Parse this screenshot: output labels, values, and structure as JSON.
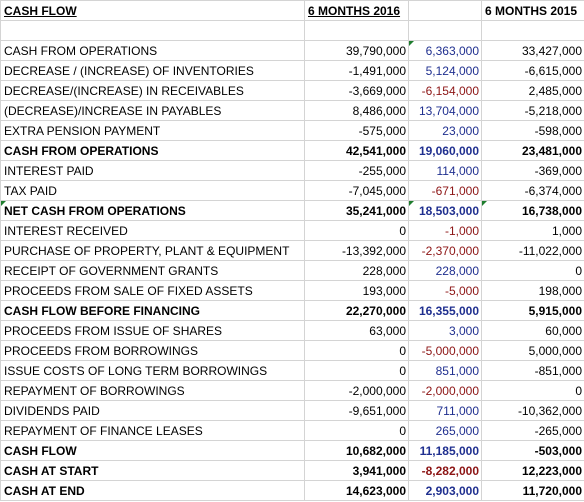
{
  "header": {
    "title": "CASH FLOW",
    "col_2016": "6 MONTHS 2016",
    "col_2015": "6 MONTHS 2015"
  },
  "rows": [
    {
      "label": "CASH FROM OPERATIONS",
      "v2016": "39,790,000",
      "diff": "6,363,000",
      "diff_neg": false,
      "v2015": "33,427,000",
      "bold": false
    },
    {
      "label": "DECREASE / (INCREASE) OF INVENTORIES",
      "v2016": "-1,491,000",
      "diff": "5,124,000",
      "diff_neg": false,
      "v2015": "-6,615,000",
      "bold": false
    },
    {
      "label": "DECREASE/(INCREASE) IN RECEIVABLES",
      "v2016": "-3,669,000",
      "diff": "-6,154,000",
      "diff_neg": true,
      "v2015": "2,485,000",
      "bold": false
    },
    {
      "label": "(DECREASE)/INCREASE IN PAYABLES",
      "v2016": "8,486,000",
      "diff": "13,704,000",
      "diff_neg": false,
      "v2015": "-5,218,000",
      "bold": false
    },
    {
      "label": "EXTRA PENSION PAYMENT",
      "v2016": "-575,000",
      "diff": "23,000",
      "diff_neg": false,
      "v2015": "-598,000",
      "bold": false
    },
    {
      "label": "CASH FROM OPERATIONS",
      "v2016": "42,541,000",
      "diff": "19,060,000",
      "diff_neg": false,
      "v2015": "23,481,000",
      "bold": true
    },
    {
      "label": "INTEREST PAID",
      "v2016": "-255,000",
      "diff": "114,000",
      "diff_neg": false,
      "v2015": "-369,000",
      "bold": false
    },
    {
      "label": "TAX PAID",
      "v2016": "-7,045,000",
      "diff": "-671,000",
      "diff_neg": true,
      "v2015": "-6,374,000",
      "bold": false
    },
    {
      "label": "NET CASH FROM OPERATIONS",
      "v2016": "35,241,000",
      "diff": "18,503,000",
      "diff_neg": false,
      "v2015": "16,738,000",
      "bold": true
    },
    {
      "label": "INTEREST RECEIVED",
      "v2016": "0",
      "diff": "-1,000",
      "diff_neg": true,
      "v2015": "1,000",
      "bold": false
    },
    {
      "label": "PURCHASE OF PROPERTY, PLANT & EQUIPMENT",
      "v2016": "-13,392,000",
      "diff": "-2,370,000",
      "diff_neg": true,
      "v2015": "-11,022,000",
      "bold": false
    },
    {
      "label": "RECEIPT OF GOVERNMENT GRANTS",
      "v2016": "228,000",
      "diff": "228,000",
      "diff_neg": false,
      "v2015": "0",
      "bold": false
    },
    {
      "label": "PROCEEDS FROM SALE OF FIXED ASSETS",
      "v2016": "193,000",
      "diff": "-5,000",
      "diff_neg": true,
      "v2015": "198,000",
      "bold": false
    },
    {
      "label": "CASH FLOW BEFORE FINANCING",
      "v2016": "22,270,000",
      "diff": "16,355,000",
      "diff_neg": false,
      "v2015": "5,915,000",
      "bold": true
    },
    {
      "label": "PROCEEDS FROM ISSUE OF SHARES",
      "v2016": "63,000",
      "diff": "3,000",
      "diff_neg": false,
      "v2015": "60,000",
      "bold": false
    },
    {
      "label": "PROCEEDS FROM BORROWINGS",
      "v2016": "0",
      "diff": "-5,000,000",
      "diff_neg": true,
      "v2015": "5,000,000",
      "bold": false
    },
    {
      "label": "ISSUE COSTS OF LONG TERM BORROWINGS",
      "v2016": "0",
      "diff": "851,000",
      "diff_neg": false,
      "v2015": "-851,000",
      "bold": false
    },
    {
      "label": "REPAYMENT OF BORROWINGS",
      "v2016": "-2,000,000",
      "diff": "-2,000,000",
      "diff_neg": true,
      "v2015": "0",
      "bold": false
    },
    {
      "label": "DIVIDENDS PAID",
      "v2016": "-9,651,000",
      "diff": "711,000",
      "diff_neg": false,
      "v2015": "-10,362,000",
      "bold": false
    },
    {
      "label": "REPAYMENT OF FINANCE LEASES",
      "v2016": "0",
      "diff": "265,000",
      "diff_neg": false,
      "v2015": "-265,000",
      "bold": false
    },
    {
      "label": "CASH FLOW",
      "v2016": "10,682,000",
      "diff": "11,185,000",
      "diff_neg": false,
      "v2015": "-503,000",
      "bold": true
    },
    {
      "label": "CASH AT START",
      "v2016": "3,941,000",
      "diff": "-8,282,000",
      "diff_neg": true,
      "v2015": "12,223,000",
      "bold": true
    },
    {
      "label": "CASH AT END",
      "v2016": "14,623,000",
      "diff": "2,903,000",
      "diff_neg": false,
      "v2015": "11,720,000",
      "bold": true
    }
  ],
  "colors": {
    "positive_diff": "#1f2f8f",
    "negative_diff": "#8c1414",
    "comment_marker": "#1e7d2e",
    "gridline": "#d4d4d4"
  }
}
